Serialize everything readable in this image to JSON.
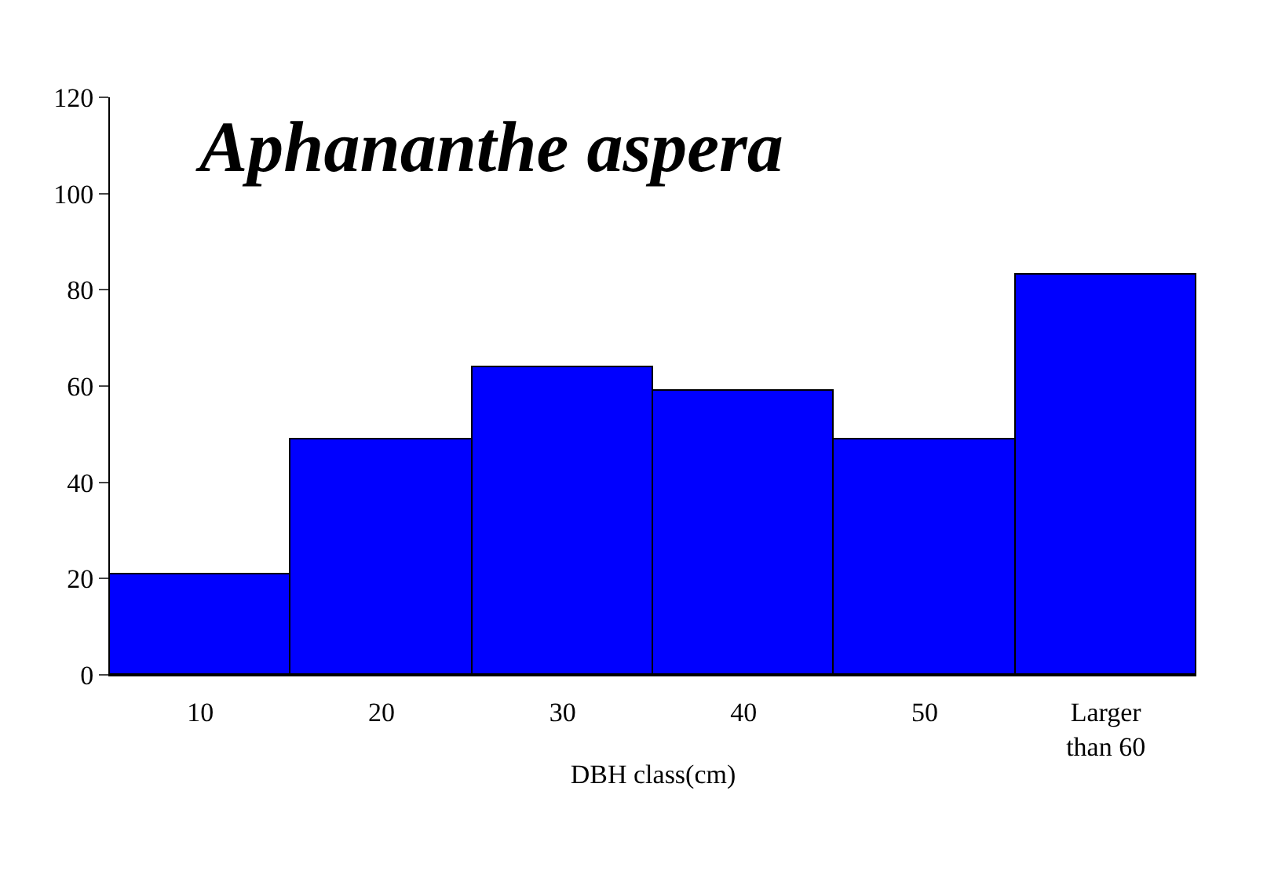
{
  "chart_data": {
    "type": "bar",
    "title": "Aphananthe aspera",
    "xlabel": "DBH class(cm)",
    "categories": [
      "10",
      "20",
      "30",
      "40",
      "50",
      "Larger\nthan 60"
    ],
    "values": [
      21,
      49,
      64,
      59,
      49,
      83
    ],
    "color": "#0000ff",
    "ylim": [
      0,
      120
    ],
    "yticks": [
      0,
      20,
      40,
      60,
      80,
      100,
      120
    ],
    "legend": false
  }
}
